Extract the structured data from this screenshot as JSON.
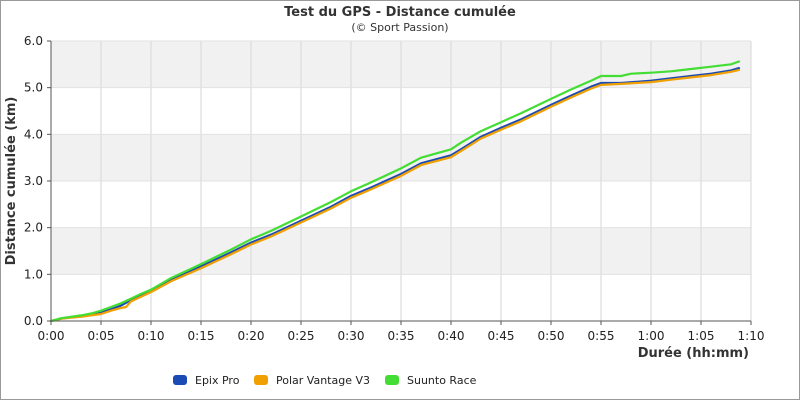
{
  "chart_data": {
    "type": "line",
    "title": "Test du GPS - Distance cumulée",
    "subtitle": "(© Sport Passion)",
    "xlabel": "Durée (hh:mm)",
    "ylabel": "Distance cumulée (km)",
    "xlim": [
      0,
      70
    ],
    "ylim": [
      0,
      6
    ],
    "x_ticks": [
      "0:00",
      "0:05",
      "0:10",
      "0:15",
      "0:20",
      "0:25",
      "0:30",
      "0:35",
      "0:40",
      "0:45",
      "0:50",
      "0:55",
      "1:00",
      "1:05",
      "1:10"
    ],
    "y_ticks": [
      "0.0",
      "1.0",
      "2.0",
      "3.0",
      "4.0",
      "5.0",
      "6.0"
    ],
    "grid": true,
    "legend_position": "bottom",
    "x_unit": "minutes",
    "series": [
      {
        "name": "Epix Pro",
        "color": "#1a4bb5",
        "x": [
          0,
          1,
          2,
          3,
          4,
          5,
          6,
          7,
          8,
          9,
          10,
          12,
          15,
          18,
          20,
          22,
          25,
          28,
          30,
          32,
          35,
          37,
          40,
          41,
          43,
          45,
          47,
          50,
          52,
          54,
          55,
          57,
          60,
          62,
          64,
          66,
          68,
          68.8
        ],
        "values": [
          0,
          0.05,
          0.08,
          0.1,
          0.13,
          0.18,
          0.25,
          0.33,
          0.45,
          0.55,
          0.65,
          0.88,
          1.17,
          1.47,
          1.68,
          1.85,
          2.15,
          2.45,
          2.68,
          2.86,
          3.15,
          3.38,
          3.55,
          3.68,
          3.95,
          4.14,
          4.32,
          4.63,
          4.83,
          5.02,
          5.1,
          5.1,
          5.15,
          5.2,
          5.25,
          5.3,
          5.37,
          5.42
        ]
      },
      {
        "name": "Polar Vantage V3",
        "color": "#f0a000",
        "x": [
          0,
          1,
          2,
          3,
          4,
          5,
          6,
          7,
          7.5,
          8,
          9,
          10,
          12,
          15,
          18,
          20,
          22,
          25,
          28,
          30,
          32,
          35,
          37,
          40,
          41,
          43,
          45,
          47,
          50,
          52,
          54,
          55,
          57,
          60,
          62,
          64,
          66,
          68,
          68.8
        ],
        "values": [
          0,
          0.05,
          0.07,
          0.09,
          0.12,
          0.15,
          0.22,
          0.28,
          0.3,
          0.42,
          0.52,
          0.62,
          0.85,
          1.13,
          1.43,
          1.64,
          1.81,
          2.11,
          2.41,
          2.64,
          2.82,
          3.11,
          3.34,
          3.51,
          3.64,
          3.91,
          4.1,
          4.28,
          4.59,
          4.79,
          4.98,
          5.06,
          5.08,
          5.12,
          5.17,
          5.22,
          5.27,
          5.34,
          5.38
        ]
      },
      {
        "name": "Suunto Race",
        "color": "#44dd33",
        "x": [
          0,
          1,
          2,
          3,
          4,
          5,
          6,
          7,
          8,
          9,
          10,
          12,
          15,
          18,
          20,
          22,
          25,
          28,
          30,
          32,
          35,
          37,
          40,
          41,
          43,
          45,
          47,
          50,
          52,
          54,
          55,
          57,
          58,
          60,
          62,
          64,
          66,
          68,
          68.8
        ],
        "values": [
          0,
          0.06,
          0.09,
          0.12,
          0.16,
          0.22,
          0.3,
          0.38,
          0.48,
          0.58,
          0.67,
          0.92,
          1.22,
          1.53,
          1.75,
          1.93,
          2.24,
          2.55,
          2.78,
          2.97,
          3.27,
          3.5,
          3.68,
          3.82,
          4.07,
          4.26,
          4.45,
          4.76,
          4.96,
          5.15,
          5.25,
          5.25,
          5.3,
          5.32,
          5.35,
          5.4,
          5.45,
          5.5,
          5.56
        ]
      }
    ]
  }
}
